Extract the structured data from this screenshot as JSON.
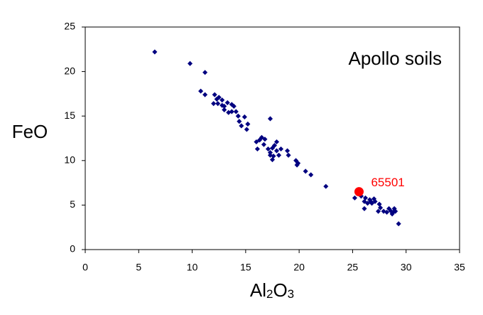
{
  "chart_data": {
    "type": "scatter",
    "x_label": "Al2O3",
    "y_label": "FeO",
    "xlim": [
      0,
      35
    ],
    "xticks": [
      0,
      5,
      10,
      15,
      20,
      25,
      30,
      35
    ],
    "ylim": [
      0,
      25
    ],
    "yticks": [
      0,
      5,
      10,
      15,
      20,
      25
    ],
    "grid": false,
    "series": [
      {
        "name": "Apollo soils",
        "color": "#000080",
        "x": [
          6.5,
          9.8,
          11.2,
          10.8,
          11.2,
          12.1,
          12.3,
          12.5,
          12.0,
          12.8,
          13.0,
          13.3,
          12.8,
          12.4,
          13.0,
          13.4,
          13.7,
          13.9,
          14.1,
          14.3,
          13.7,
          14.4,
          14.6,
          15.1,
          15.2,
          14.9,
          16.0,
          16.3,
          16.5,
          16.7,
          16.8,
          16.1,
          17.3,
          17.1,
          17.3,
          17.5,
          17.7,
          17.9,
          17.5,
          17.6,
          18.1,
          17.3,
          17.9,
          18.3,
          18.9,
          19.0,
          19.7,
          19.9,
          19.8,
          20.6,
          21.1,
          22.5,
          25.2,
          25.8,
          26.1,
          26.2,
          26.4,
          26.6,
          26.7,
          26.8,
          27.0,
          27.1,
          26.1,
          27.5,
          27.6,
          27.4,
          28.4,
          28.6,
          28.8,
          28.9,
          28.7,
          27.9,
          29.3,
          28.2,
          29.0
        ],
        "values": [
          22.2,
          20.9,
          19.9,
          17.8,
          17.4,
          17.4,
          16.9,
          17.1,
          16.4,
          16.2,
          16.1,
          16.5,
          16.8,
          16.4,
          15.7,
          15.4,
          15.5,
          16.1,
          15.5,
          15.0,
          16.3,
          14.4,
          13.9,
          13.5,
          14.1,
          14.9,
          12.1,
          12.3,
          12.6,
          11.8,
          12.4,
          11.3,
          14.7,
          11.3,
          10.6,
          11.4,
          11.7,
          11.1,
          10.1,
          10.5,
          10.6,
          10.9,
          12.1,
          11.3,
          11.1,
          10.6,
          10.0,
          9.7,
          9.5,
          8.8,
          8.4,
          7.1,
          5.8,
          6.0,
          5.4,
          5.8,
          5.2,
          5.6,
          5.4,
          5.2,
          5.7,
          5.4,
          4.6,
          5.1,
          4.7,
          4.3,
          4.6,
          4.3,
          4.2,
          4.6,
          4.0,
          4.3,
          2.9,
          4.2,
          4.3
        ]
      },
      {
        "name": "65501",
        "color": "#ff0000",
        "x": [
          25.6
        ],
        "values": [
          6.5
        ]
      }
    ]
  }
}
